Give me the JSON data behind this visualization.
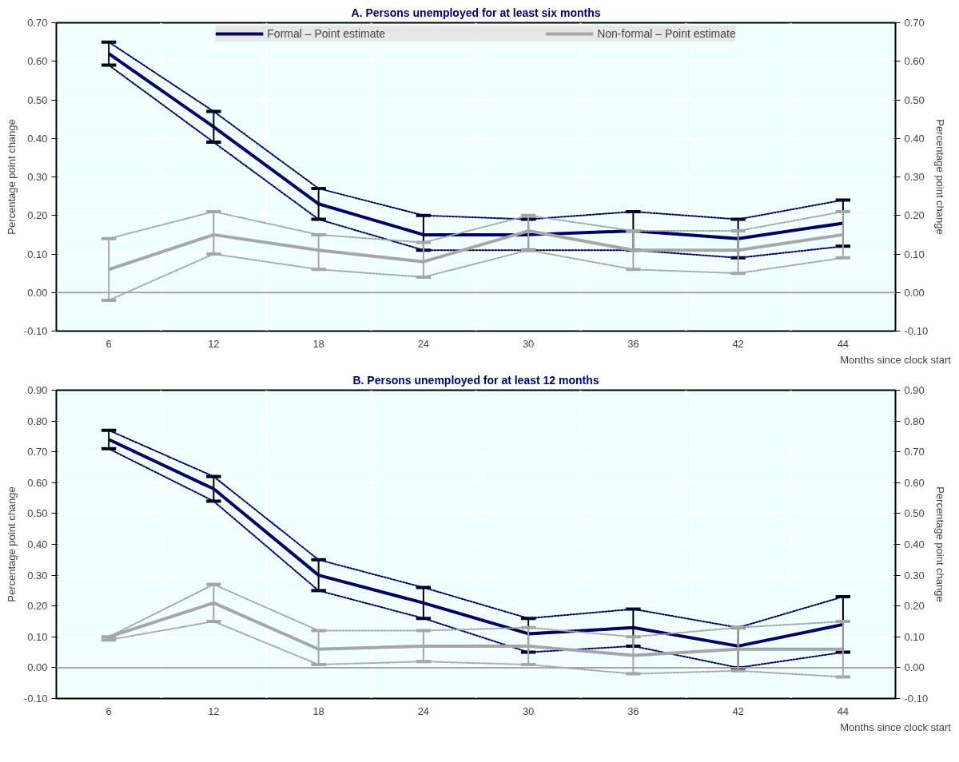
{
  "chart_data": [
    {
      "type": "line",
      "title": "A. Persons unemployed for at least six months",
      "xlabel": "Months since clock start",
      "ylabel": "Percentage point change",
      "y2label": "Percentage point change",
      "categories": [
        "6",
        "12",
        "18",
        "24",
        "30",
        "36",
        "42",
        "44"
      ],
      "series": [
        {
          "name": "Formal – Point estimate",
          "color": "#000066",
          "values": [
            0.62,
            0.43,
            0.23,
            0.15,
            0.15,
            0.16,
            0.14,
            0.18
          ],
          "errors": [
            [
              0.59,
              0.65
            ],
            [
              0.39,
              0.47
            ],
            [
              0.19,
              0.27
            ],
            [
              0.11,
              0.2
            ],
            [
              0.11,
              0.19
            ],
            [
              0.11,
              0.21
            ],
            [
              0.09,
              0.19
            ],
            [
              0.12,
              0.24
            ]
          ]
        },
        {
          "color": "#000066",
          "line_style": "dotted",
          "values": [
            0.59,
            0.39,
            0.19,
            0.11,
            0.11,
            0.11,
            0.09,
            0.12
          ]
        },
        {
          "color": "#000066",
          "line_style": "dotted",
          "values": [
            0.65,
            0.47,
            0.27,
            0.2,
            0.19,
            0.21,
            0.19,
            0.24
          ]
        },
        {
          "name": "Non-formal – Point estimate",
          "color": "#a6a6a6",
          "values": [
            0.06,
            0.15,
            0.11,
            0.08,
            0.16,
            0.11,
            0.11,
            0.15
          ],
          "errors": [
            [
              -0.02,
              0.14
            ],
            [
              0.1,
              0.21
            ],
            [
              0.06,
              0.15
            ],
            [
              0.04,
              0.13
            ],
            [
              0.11,
              0.2
            ],
            [
              0.06,
              0.16
            ],
            [
              0.05,
              0.16
            ],
            [
              0.09,
              0.21
            ]
          ]
        },
        {
          "color": "#a6a6a6",
          "line_style": "dotted",
          "values": [
            -0.02,
            0.1,
            0.06,
            0.04,
            0.11,
            0.06,
            0.05,
            0.09
          ]
        },
        {
          "color": "#a6a6a6",
          "line_style": "dotted",
          "values": [
            0.14,
            0.21,
            0.15,
            0.13,
            0.2,
            0.16,
            0.16,
            0.21
          ]
        }
      ],
      "ylim": [
        -0.1,
        0.7
      ],
      "yticks": [
        {
          "value": -0.1,
          "label": "-0.10"
        },
        {
          "value": 0,
          "label": "0.00"
        },
        {
          "value": 0.1,
          "label": "0.10"
        },
        {
          "value": 0.2,
          "label": "0.20"
        },
        {
          "value": 0.3,
          "label": "0.30"
        },
        {
          "value": 0.4,
          "label": "0.40"
        },
        {
          "value": 0.5,
          "label": "0.50"
        },
        {
          "value": 0.6,
          "label": "0.60"
        },
        {
          "value": 0.7,
          "label": "0.70"
        }
      ],
      "y2lim": [
        -0.1,
        0.7
      ],
      "y2ticks": [
        {
          "value": -0.1,
          "label": "-0.10"
        },
        {
          "value": 0,
          "label": "0.00"
        },
        {
          "value": 0.1,
          "label": "0.10"
        },
        {
          "value": 0.2,
          "label": "0.20"
        },
        {
          "value": 0.3,
          "label": "0.30"
        },
        {
          "value": 0.4,
          "label": "0.40"
        },
        {
          "value": 0.5,
          "label": "0.50"
        },
        {
          "value": 0.6,
          "label": "0.60"
        },
        {
          "value": 0.7,
          "label": "0.70"
        }
      ],
      "ref_lines": [
        {
          "axis": "y",
          "value": 0,
          "color": "#a6a6a6"
        }
      ],
      "grid": true,
      "legend": "top"
    },
    {
      "type": "line",
      "title": "B. Persons unemployed for at least 12 months",
      "xlabel": "Months since clock start",
      "ylabel": "Percentage point change",
      "y2label": "Percentage point change",
      "categories": [
        "6",
        "12",
        "18",
        "24",
        "30",
        "36",
        "42",
        "44"
      ],
      "series": [
        {
          "color": "#000066",
          "values": [
            0.74,
            0.58,
            0.3,
            0.21,
            0.11,
            0.13,
            0.07,
            0.14
          ],
          "errors": [
            [
              0.71,
              0.77
            ],
            [
              0.54,
              0.62
            ],
            [
              0.25,
              0.35
            ],
            [
              0.16,
              0.26
            ],
            [
              0.05,
              0.16
            ],
            [
              0.07,
              0.19
            ],
            [
              0.0,
              0.13
            ],
            [
              0.05,
              0.23
            ]
          ]
        },
        {
          "color": "#000066",
          "line_style": "dotted",
          "values": [
            0.71,
            0.54,
            0.25,
            0.16,
            0.05,
            0.07,
            0.0,
            0.05
          ]
        },
        {
          "color": "#000066",
          "line_style": "dotted",
          "values": [
            0.77,
            0.62,
            0.35,
            0.26,
            0.16,
            0.19,
            0.13,
            0.23
          ]
        },
        {
          "color": "#a6a6a6",
          "values": [
            0.1,
            0.21,
            0.06,
            0.07,
            0.07,
            0.04,
            0.06,
            0.06
          ],
          "errors": [
            [
              0.09,
              0.1
            ],
            [
              0.15,
              0.27
            ],
            [
              0.01,
              0.12
            ],
            [
              0.02,
              0.12
            ],
            [
              0.01,
              0.13
            ],
            [
              -0.02,
              0.1
            ],
            [
              -0.01,
              0.13
            ],
            [
              -0.03,
              0.15
            ]
          ]
        },
        {
          "color": "#a6a6a6",
          "line_style": "dotted",
          "values": [
            0.09,
            0.15,
            0.01,
            0.02,
            0.01,
            -0.02,
            -0.01,
            -0.03
          ]
        },
        {
          "color": "#a6a6a6",
          "line_style": "dotted",
          "values": [
            0.1,
            0.27,
            0.12,
            0.12,
            0.13,
            0.1,
            0.13,
            0.15
          ]
        }
      ],
      "ylim": [
        -0.1,
        0.9
      ],
      "yticks": [
        {
          "value": -0.1,
          "label": "-0.10"
        },
        {
          "value": 0,
          "label": "0.00"
        },
        {
          "value": 0.1,
          "label": "0.10"
        },
        {
          "value": 0.2,
          "label": "0.20"
        },
        {
          "value": 0.3,
          "label": "0.30"
        },
        {
          "value": 0.4,
          "label": "0.40"
        },
        {
          "value": 0.5,
          "label": "0.50"
        },
        {
          "value": 0.6,
          "label": "0.60"
        },
        {
          "value": 0.7,
          "label": "0.70"
        },
        {
          "value": 0.8,
          "label": "0.80"
        },
        {
          "value": 0.9,
          "label": "0.90"
        }
      ],
      "y2lim": [
        -0.1,
        0.9
      ],
      "y2ticks": [
        {
          "value": -0.1,
          "label": "-0.10"
        },
        {
          "value": 0,
          "label": "0.00"
        },
        {
          "value": 0.1,
          "label": "0.10"
        },
        {
          "value": 0.2,
          "label": "0.20"
        },
        {
          "value": 0.3,
          "label": "0.30"
        },
        {
          "value": 0.4,
          "label": "0.40"
        },
        {
          "value": 0.5,
          "label": "0.50"
        },
        {
          "value": 0.6,
          "label": "0.60"
        },
        {
          "value": 0.7,
          "label": "0.70"
        },
        {
          "value": 0.8,
          "label": "0.80"
        },
        {
          "value": 0.9,
          "label": "0.90"
        }
      ],
      "ref_lines": [
        {
          "axis": "y",
          "value": 0,
          "color": "#a6a6a6"
        }
      ],
      "grid": true
    }
  ]
}
